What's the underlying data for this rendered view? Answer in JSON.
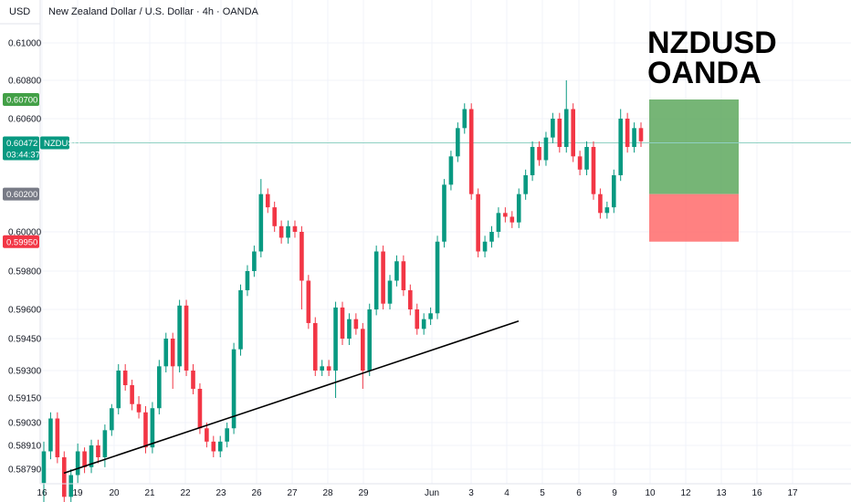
{
  "header": {
    "currency_label": "USD",
    "symbol_title": "New Zealand Dollar / U.S. Dollar · 4h · OANDA"
  },
  "annotation": {
    "line1": "NZDUSD",
    "line2": "OANDA"
  },
  "colors": {
    "up": "#089981",
    "down": "#f23645",
    "grid": "#f0f3fa",
    "price_line": "#8fd0c3",
    "tp_zone": "#5ea85e",
    "sl_zone": "#ff6b6b",
    "trendline": "#000000"
  },
  "badges": [
    {
      "name": "take-profit-badge",
      "text": "0.60700",
      "color": "#43a047"
    },
    {
      "name": "current-price-badge",
      "text": "0.60472",
      "sub": "03:44:37",
      "color": "#089981"
    },
    {
      "name": "symbol-badge",
      "text": "NZDUSD",
      "color": "#089981"
    },
    {
      "name": "entry-badge",
      "text": "0.60200",
      "color": "#787b86"
    },
    {
      "name": "stop-loss-badge",
      "text": "0.59950",
      "color": "#f23645"
    }
  ],
  "chart_data": {
    "type": "candlestick",
    "title": "New Zealand Dollar / U.S. Dollar · 4h · OANDA",
    "symbol": "NZDUSD",
    "y_ticks": [
      "0.61000",
      "0.60800",
      "0.60600",
      "0.60000",
      "0.59800",
      "0.59600",
      "0.59450",
      "0.59300",
      "0.59150",
      "0.59030",
      "0.58910",
      "0.58790"
    ],
    "x_ticks": [
      "16",
      "19",
      "20",
      "21",
      "22",
      "23",
      "26",
      "27",
      "28",
      "29",
      "Jun",
      "3",
      "4",
      "5",
      "6",
      "9",
      "10",
      "12",
      "13",
      "16",
      "17"
    ],
    "current_price": 0.60472,
    "countdown": "03:44:37",
    "position": {
      "take_profit": 0.607,
      "entry": 0.602,
      "stop_loss": 0.5995
    },
    "trendline": {
      "from": 0.5877,
      "to": 0.5954
    },
    "candles": [
      [
        0.5872,
        0.5888,
        0.5857,
        0.5893
      ],
      [
        0.5888,
        0.5905,
        0.5884,
        0.5908
      ],
      [
        0.5905,
        0.5885,
        0.5882,
        0.5908
      ],
      [
        0.5885,
        0.5865,
        0.5862,
        0.5888
      ],
      [
        0.5865,
        0.5876,
        0.5862,
        0.5879
      ],
      [
        0.5876,
        0.5888,
        0.5872,
        0.5892
      ],
      [
        0.5888,
        0.588,
        0.5877,
        0.589
      ],
      [
        0.588,
        0.5891,
        0.5877,
        0.5894
      ],
      [
        0.5891,
        0.5885,
        0.5882,
        0.5894
      ],
      [
        0.5885,
        0.5899,
        0.588,
        0.5902
      ],
      [
        0.5899,
        0.591,
        0.5896,
        0.5912
      ],
      [
        0.591,
        0.593,
        0.5907,
        0.5933
      ],
      [
        0.593,
        0.5922,
        0.5919,
        0.5933
      ],
      [
        0.5922,
        0.5912,
        0.5909,
        0.5925
      ],
      [
        0.5912,
        0.5908,
        0.5905,
        0.5916
      ],
      [
        0.5908,
        0.589,
        0.5887,
        0.5911
      ],
      [
        0.589,
        0.591,
        0.5887,
        0.5913
      ],
      [
        0.591,
        0.5932,
        0.5907,
        0.5935
      ],
      [
        0.5932,
        0.5945,
        0.5929,
        0.5948
      ],
      [
        0.5945,
        0.5932,
        0.592,
        0.5948
      ],
      [
        0.5932,
        0.5962,
        0.5929,
        0.5965
      ],
      [
        0.5962,
        0.593,
        0.5927,
        0.5965
      ],
      [
        0.593,
        0.592,
        0.5917,
        0.5933
      ],
      [
        0.592,
        0.59,
        0.5897,
        0.5923
      ],
      [
        0.59,
        0.5893,
        0.589,
        0.5903
      ],
      [
        0.5893,
        0.5888,
        0.5885,
        0.5896
      ],
      [
        0.5888,
        0.5893,
        0.5885,
        0.5896
      ],
      [
        0.5893,
        0.59,
        0.589,
        0.5903
      ],
      [
        0.59,
        0.594,
        0.5897,
        0.5943
      ],
      [
        0.594,
        0.597,
        0.5937,
        0.5973
      ],
      [
        0.597,
        0.598,
        0.5967,
        0.5983
      ],
      [
        0.598,
        0.599,
        0.5977,
        0.5993
      ],
      [
        0.599,
        0.602,
        0.5987,
        0.6028
      ],
      [
        0.602,
        0.6013,
        0.601,
        0.6023
      ],
      [
        0.6013,
        0.6003,
        0.6,
        0.6016
      ],
      [
        0.6003,
        0.5997,
        0.5994,
        0.6006
      ],
      [
        0.5997,
        0.6003,
        0.5994,
        0.6006
      ],
      [
        0.6003,
        0.6,
        0.5997,
        0.6006
      ],
      [
        0.6,
        0.5975,
        0.596,
        0.6003
      ],
      [
        0.5975,
        0.5953,
        0.595,
        0.5978
      ],
      [
        0.5953,
        0.593,
        0.5927,
        0.5956
      ],
      [
        0.593,
        0.5932,
        0.5927,
        0.5935
      ],
      [
        0.5932,
        0.593,
        0.5927,
        0.5935
      ],
      [
        0.593,
        0.5961,
        0.5915,
        0.5964
      ],
      [
        0.5961,
        0.5945,
        0.5942,
        0.5964
      ],
      [
        0.5945,
        0.5955,
        0.5942,
        0.5958
      ],
      [
        0.5955,
        0.595,
        0.5947,
        0.5958
      ],
      [
        0.595,
        0.593,
        0.592,
        0.5953
      ],
      [
        0.593,
        0.596,
        0.5927,
        0.5963
      ],
      [
        0.596,
        0.599,
        0.5957,
        0.5993
      ],
      [
        0.599,
        0.5963,
        0.596,
        0.5993
      ],
      [
        0.5963,
        0.5975,
        0.596,
        0.5978
      ],
      [
        0.5975,
        0.5985,
        0.5972,
        0.5988
      ],
      [
        0.5985,
        0.597,
        0.5967,
        0.5988
      ],
      [
        0.597,
        0.596,
        0.5957,
        0.5973
      ],
      [
        0.596,
        0.595,
        0.5947,
        0.5963
      ],
      [
        0.595,
        0.5955,
        0.5947,
        0.5958
      ],
      [
        0.5955,
        0.5958,
        0.5952,
        0.5961
      ],
      [
        0.5958,
        0.5995,
        0.5955,
        0.5998
      ],
      [
        0.5995,
        0.6025,
        0.5992,
        0.6028
      ],
      [
        0.6025,
        0.604,
        0.6022,
        0.6043
      ],
      [
        0.604,
        0.6055,
        0.6037,
        0.6058
      ],
      [
        0.6055,
        0.6065,
        0.6052,
        0.6068
      ],
      [
        0.6065,
        0.602,
        0.6017,
        0.6068
      ],
      [
        0.602,
        0.599,
        0.5987,
        0.6023
      ],
      [
        0.599,
        0.5995,
        0.5987,
        0.5998
      ],
      [
        0.5995,
        0.6,
        0.5992,
        0.6003
      ],
      [
        0.6,
        0.601,
        0.5997,
        0.6013
      ],
      [
        0.601,
        0.6008,
        0.6005,
        0.6013
      ],
      [
        0.6008,
        0.6005,
        0.6002,
        0.6011
      ],
      [
        0.6005,
        0.602,
        0.6002,
        0.6023
      ],
      [
        0.602,
        0.603,
        0.6017,
        0.6033
      ],
      [
        0.603,
        0.6045,
        0.6027,
        0.6048
      ],
      [
        0.6045,
        0.6038,
        0.6035,
        0.6048
      ],
      [
        0.6038,
        0.605,
        0.6035,
        0.6053
      ],
      [
        0.605,
        0.606,
        0.6047,
        0.6063
      ],
      [
        0.606,
        0.6045,
        0.6042,
        0.6063
      ],
      [
        0.6045,
        0.6065,
        0.6042,
        0.608
      ],
      [
        0.6065,
        0.604,
        0.6037,
        0.6068
      ],
      [
        0.604,
        0.6033,
        0.603,
        0.6043
      ],
      [
        0.6033,
        0.6045,
        0.603,
        0.6048
      ],
      [
        0.6045,
        0.602,
        0.6017,
        0.6048
      ],
      [
        0.602,
        0.601,
        0.6007,
        0.6023
      ],
      [
        0.601,
        0.6013,
        0.6007,
        0.6016
      ],
      [
        0.6013,
        0.603,
        0.601,
        0.6033
      ],
      [
        0.603,
        0.606,
        0.6027,
        0.6065
      ],
      [
        0.606,
        0.6045,
        0.6042,
        0.6063
      ],
      [
        0.6045,
        0.6055,
        0.6042,
        0.6058
      ],
      [
        0.6055,
        0.6048,
        0.6045,
        0.6058
      ]
    ]
  }
}
